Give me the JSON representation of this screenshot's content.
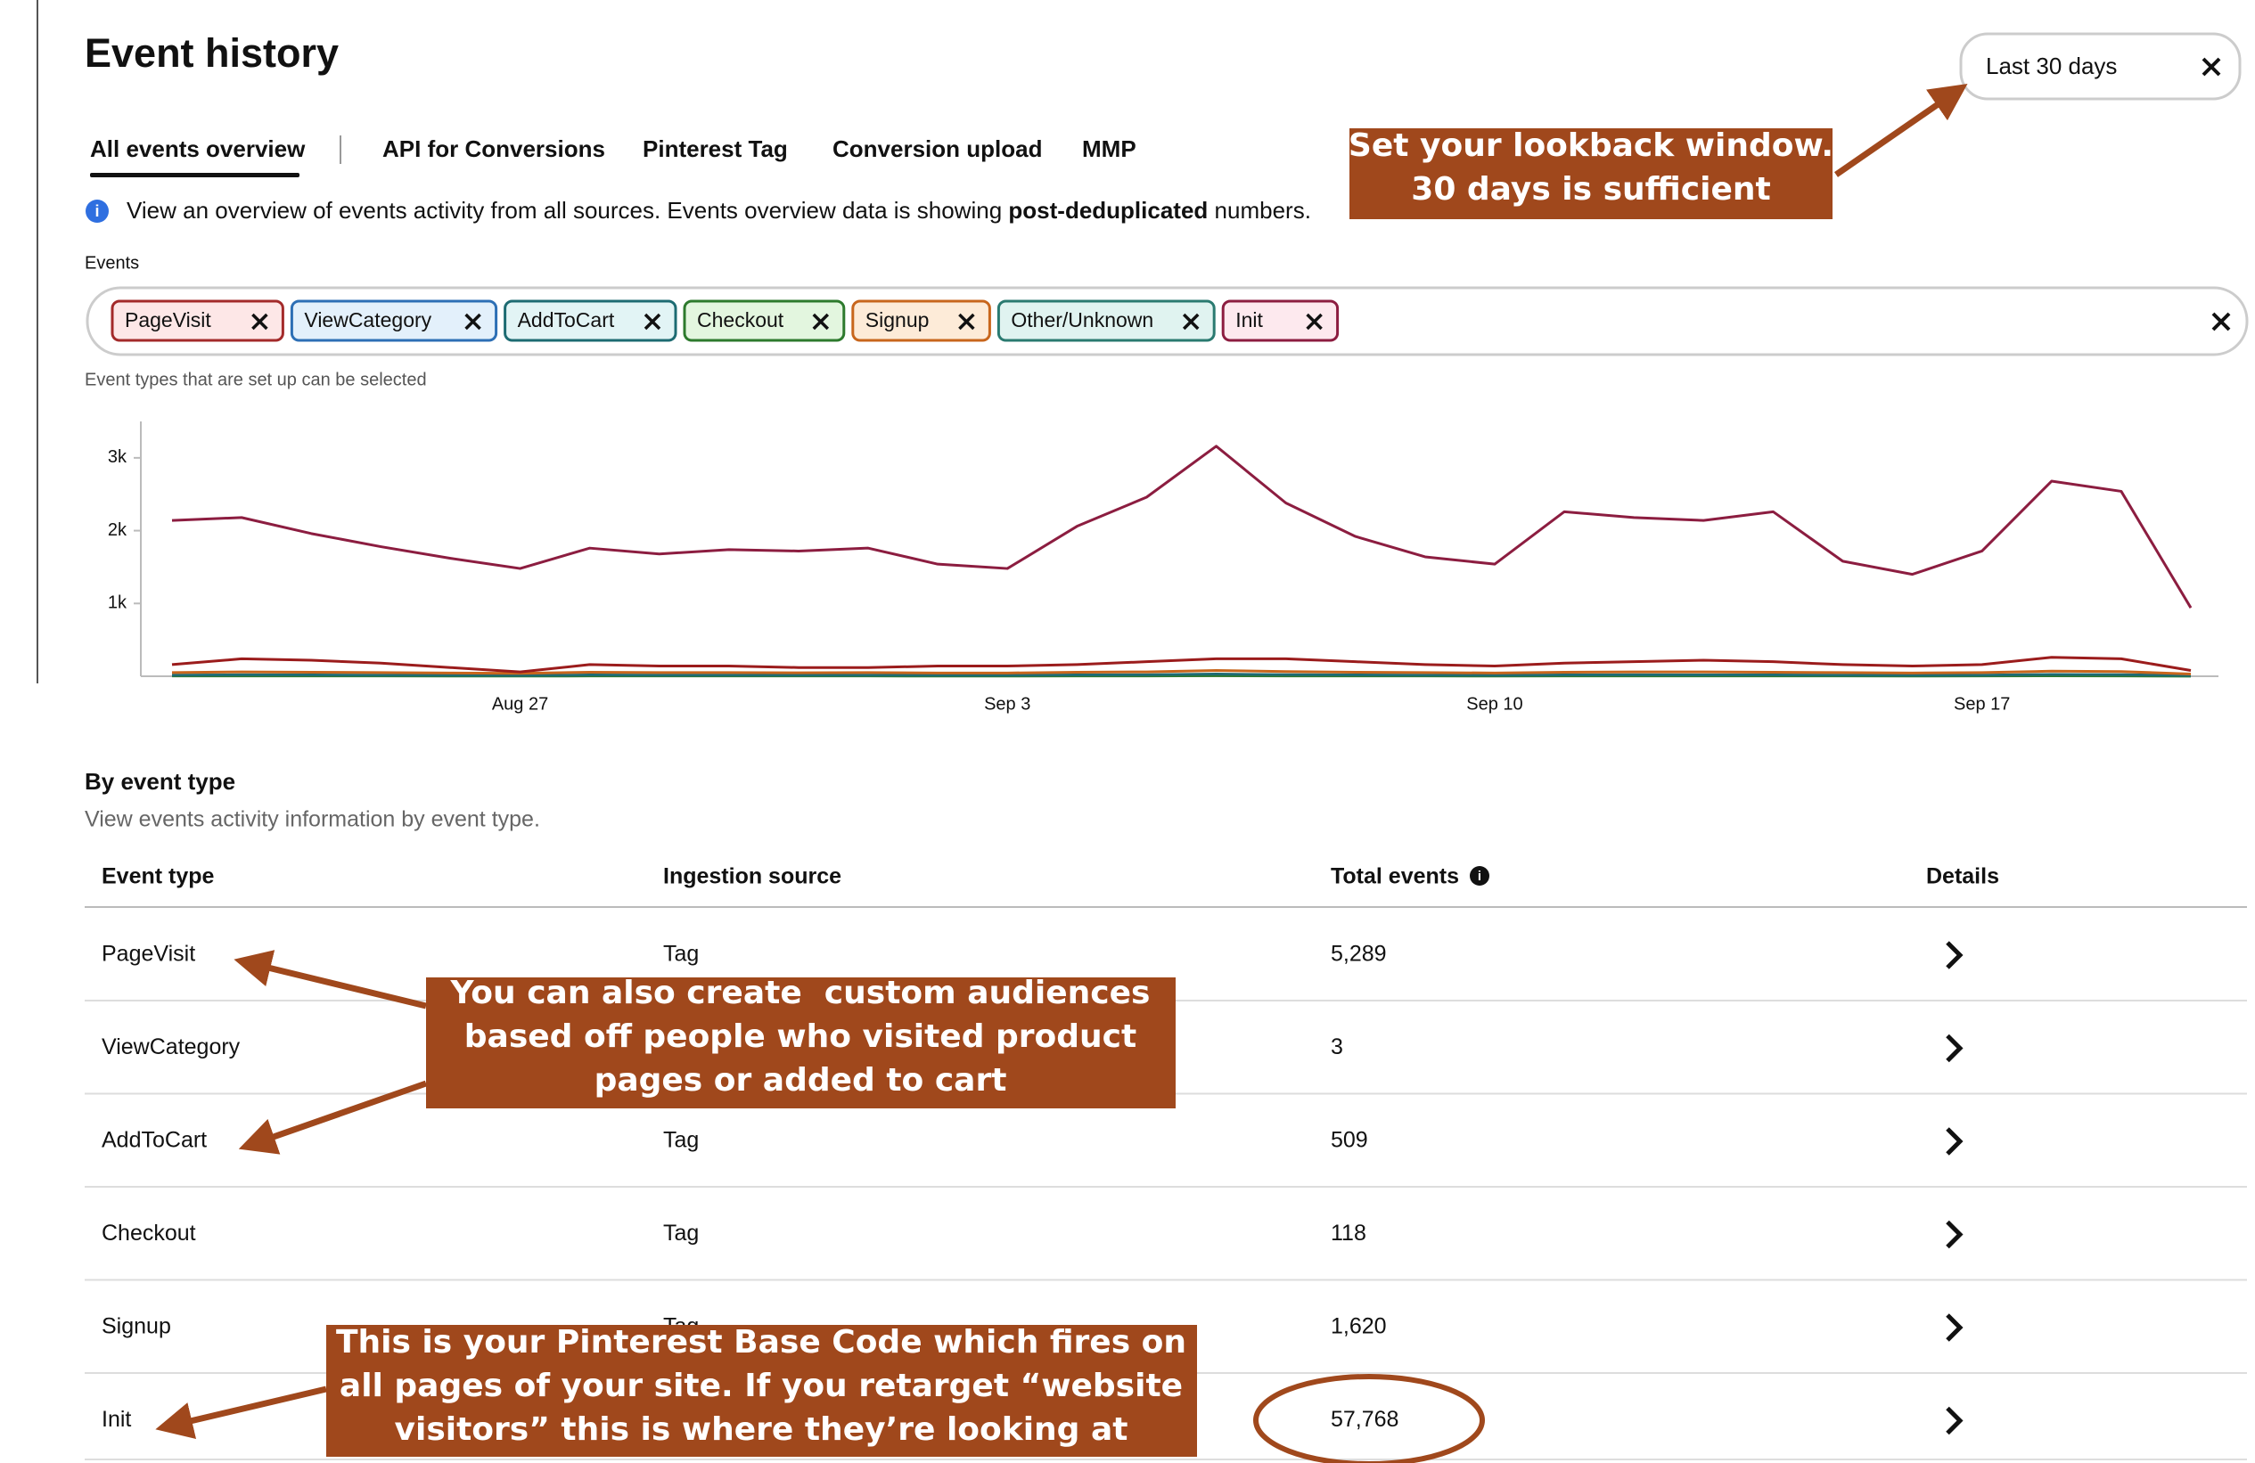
{
  "header": {
    "title": "Event history"
  },
  "date_filter": {
    "label": "Last 30 days"
  },
  "tabs": [
    "All events overview",
    "API for Conversions",
    "Pinterest Tag",
    "Conversion upload",
    "MMP"
  ],
  "info": {
    "before": "View an overview of events activity from all sources. Events overview data is showing ",
    "bold": "post-deduplicated",
    "after": " numbers."
  },
  "events_filter": {
    "label": "Events",
    "chips": [
      {
        "label": "PageVisit",
        "fill": "#fde7e7",
        "border": "#a32a2a"
      },
      {
        "label": "ViewCategory",
        "fill": "#e3f0fb",
        "border": "#2d6fb5"
      },
      {
        "label": "AddToCart",
        "fill": "#e2f4f5",
        "border": "#1d6b72"
      },
      {
        "label": "Checkout",
        "fill": "#e3f6df",
        "border": "#2d7a2d"
      },
      {
        "label": "Signup",
        "fill": "#fdebd8",
        "border": "#c8661c"
      },
      {
        "label": "Other/Unknown",
        "fill": "#e0f3f0",
        "border": "#2a7a70"
      },
      {
        "label": "Init",
        "fill": "#fde9ee",
        "border": "#8c1d40"
      }
    ],
    "hint": "Event types that are set up can be selected"
  },
  "chart": {
    "type": "line",
    "categories": [
      null,
      null,
      null,
      null,
      null,
      "Aug 27",
      null,
      null,
      null,
      null,
      null,
      null,
      "Sep 3",
      null,
      null,
      null,
      null,
      null,
      null,
      "Sep 10",
      null,
      null,
      null,
      null,
      null,
      null,
      "Sep 17",
      null,
      null,
      null
    ],
    "ylim": [
      0,
      3500
    ],
    "yticks": [
      {
        "value": 1000,
        "label": "1k"
      },
      {
        "value": 2000,
        "label": "2k"
      },
      {
        "value": 3000,
        "label": "3k"
      }
    ],
    "series": [
      {
        "color": "#8c1d40",
        "values": [
          2140,
          2180,
          1960,
          1780,
          1620,
          1480,
          1760,
          1680,
          1740,
          1720,
          1760,
          1540,
          1480,
          2060,
          2460,
          3160,
          2380,
          1920,
          1640,
          1540,
          2260,
          2180,
          2140,
          2260,
          1580,
          1400,
          1720,
          2680,
          2540,
          940
        ]
      },
      {
        "color": "#9b1c1c",
        "values": [
          160,
          240,
          220,
          180,
          120,
          60,
          160,
          140,
          140,
          120,
          120,
          140,
          140,
          160,
          200,
          240,
          240,
          200,
          160,
          140,
          180,
          200,
          220,
          200,
          160,
          140,
          160,
          260,
          240,
          80
        ]
      },
      {
        "color": "#c8661c",
        "values": [
          50,
          60,
          55,
          50,
          45,
          40,
          55,
          50,
          50,
          48,
          50,
          45,
          45,
          55,
          60,
          80,
          65,
          55,
          50,
          45,
          55,
          60,
          60,
          55,
          50,
          45,
          50,
          70,
          65,
          30
        ]
      },
      {
        "color": "#1d6b72",
        "values": [
          15,
          20,
          18,
          16,
          14,
          12,
          18,
          16,
          16,
          15,
          16,
          14,
          14,
          18,
          20,
          30,
          22,
          18,
          16,
          14,
          18,
          20,
          18,
          18,
          15,
          14,
          16,
          24,
          22,
          10
        ]
      },
      {
        "color": "#2d7a2d",
        "values": [
          4,
          5,
          4,
          4,
          3,
          3,
          4,
          4,
          4,
          4,
          4,
          3,
          3,
          4,
          5,
          8,
          5,
          4,
          4,
          3,
          4,
          5,
          4,
          4,
          4,
          3,
          4,
          6,
          5,
          2
        ]
      }
    ]
  },
  "table": {
    "title": "By event type",
    "subtitle": "View events activity information by event type.",
    "columns": [
      "Event type",
      "Ingestion source",
      "Total events",
      "Details"
    ],
    "rows": [
      [
        "PageVisit",
        "Tag",
        "5,289"
      ],
      [
        "ViewCategory",
        null,
        "3"
      ],
      [
        "AddToCart",
        "Tag",
        "509"
      ],
      [
        "Checkout",
        "Tag",
        "118"
      ],
      [
        "Signup",
        "Tag",
        "1,620"
      ],
      [
        "Init",
        null,
        "57,768"
      ]
    ]
  },
  "annotations": [
    {
      "lines": [
        "Set your lookback window.",
        "30 days is sufficient"
      ]
    },
    {
      "lines": [
        "You can also create  custom audiences",
        "based off people who visited product",
        "pages or added to cart"
      ]
    },
    {
      "lines": [
        "This is your Pinterest Base Code which fires on",
        "all pages of your site. If you retarget “website",
        "visitors” this is where they’re looking at"
      ]
    }
  ]
}
